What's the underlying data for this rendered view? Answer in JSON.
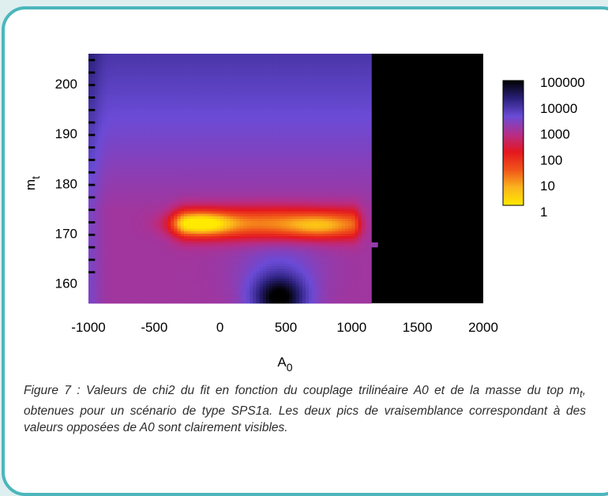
{
  "chart_data": {
    "type": "heatmap",
    "title": "",
    "xlabel": "A",
    "xlabel_sub": "0",
    "ylabel": "m",
    "ylabel_sub": "t",
    "xlim": [
      -1000,
      2000
    ],
    "ylim": [
      156,
      206
    ],
    "x_ticks": [
      "-1000",
      "-500",
      "0",
      "500",
      "1000",
      "1500",
      "2000"
    ],
    "x_tick_values": [
      -1000,
      -500,
      0,
      500,
      1000,
      1500,
      2000
    ],
    "y_ticks": [
      "200",
      "190",
      "180",
      "170",
      "160"
    ],
    "y_tick_values": [
      200,
      190,
      180,
      170,
      160
    ],
    "colorbar": {
      "scale": "log",
      "labels": [
        "100000",
        "10000",
        "1000",
        "100",
        "10",
        "1"
      ],
      "values": [
        100000,
        10000,
        1000,
        100,
        10,
        1
      ],
      "colors": [
        "#000000",
        "#2a2079",
        "#6a4bd6",
        "#b52e8a",
        "#e4161f",
        "#f0541a",
        "#fab41c",
        "#ffea00"
      ]
    },
    "data_region": {
      "x_max": 1150,
      "y_max": 206
    },
    "features": [
      {
        "label": "minimum",
        "A0": -150,
        "mt": 172,
        "chi2": 1
      },
      {
        "label": "second minimum",
        "A0": 750,
        "mt": 171.5,
        "chi2": 30
      },
      {
        "label": "high chi2 region",
        "A0": 450,
        "mt": 158,
        "chi2": 50000
      }
    ]
  },
  "caption": {
    "text_before": "Figure 7 : Valeurs de chi2 du fit en fonction du couplage trilinéaire A0 et de la masse du top m",
    "subscript": "t",
    "text_after": ", obtenues pour un scénario de type SPS1a. Les deux pics de vraisemblance correspondant à des valeurs opposées de A0 sont clairement visibles."
  }
}
